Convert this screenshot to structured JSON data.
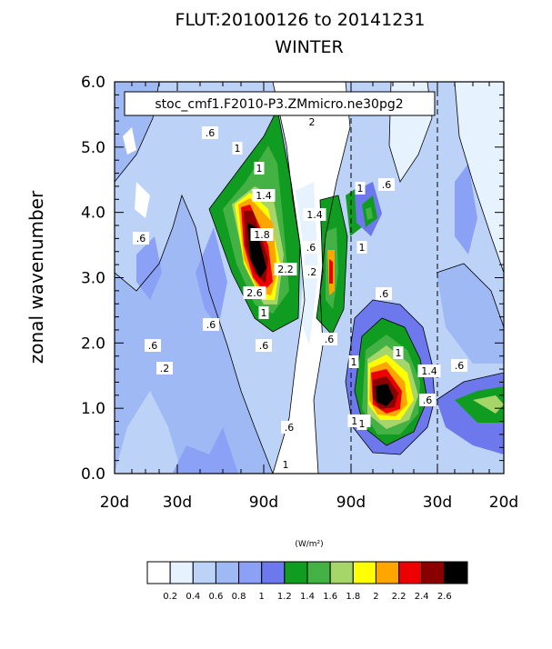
{
  "chart_data": {
    "type": "contour",
    "title": "FLUT:20100126 to 20141231",
    "subtitle": "WINTER",
    "ylabel": "zonal wavenumber",
    "annotation": "stoc_cmf1.F2010-P3.ZMmicro.ne30pg2",
    "x_tick_labels": [
      "20d",
      "30d",
      "90d",
      "90d",
      "30d",
      "20d"
    ],
    "y_ticks": [
      "0.0",
      "1.0",
      "2.0",
      "3.0",
      "4.0",
      "5.0",
      "6.0"
    ],
    "ylim": [
      0,
      6
    ],
    "colorbar": {
      "units": "(W/m²)",
      "levels": [
        "0.2",
        "0.4",
        "0.6",
        "0.8",
        "1",
        "1.2",
        "1.4",
        "1.6",
        "1.8",
        "2",
        "2.2",
        "2.4",
        "2.6"
      ],
      "colors": [
        "#ffffff",
        "#e6f2fd",
        "#bcd3f7",
        "#9fb9f5",
        "#8aa1f6",
        "#6d78ec",
        "#109c21",
        "#43b143",
        "#a6d56a",
        "#ffff00",
        "#ffa500",
        "#ed0000",
        "#8a0000",
        "#000000"
      ]
    },
    "contour_labels": [
      ".6",
      "1",
      "1",
      "1.4",
      "1.8",
      "2.2",
      "2.6",
      "1",
      ".6",
      "2",
      ".2",
      ".6",
      "1.4",
      ".6",
      "1",
      ".6",
      "1",
      ".6",
      "1",
      "1",
      "1.4",
      "1.4",
      "1",
      ".6",
      ".6",
      ".2",
      ".6",
      ".6",
      "1",
      ".6",
      ".6"
    ]
  }
}
